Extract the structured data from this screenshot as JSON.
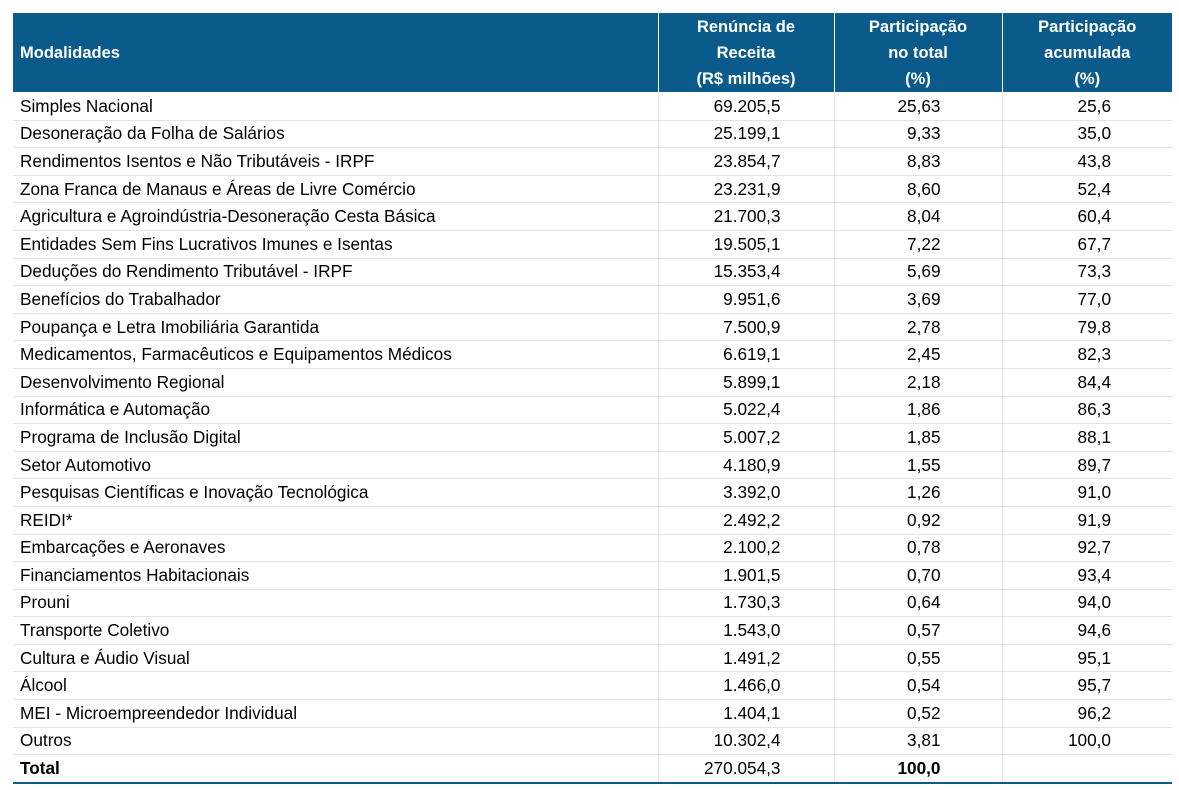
{
  "header": {
    "col1": "Modalidades",
    "col2_lines": [
      "Renúncia de",
      "Receita",
      "(R$ milhões)"
    ],
    "col3_lines": [
      "Participação",
      "no total",
      "(%)"
    ],
    "col4_lines": [
      "Participação",
      "acumulada",
      "(%)"
    ]
  },
  "rows": [
    {
      "name": "Simples Nacional",
      "renuncia": "69.205,5",
      "part": "25,63",
      "acum": "25,6"
    },
    {
      "name": "Desoneração da Folha de Salários",
      "renuncia": "25.199,1",
      "part": "9,33",
      "acum": "35,0"
    },
    {
      "name": "Rendimentos Isentos e Não Tributáveis - IRPF",
      "renuncia": "23.854,7",
      "part": "8,83",
      "acum": "43,8"
    },
    {
      "name": "Zona Franca de Manaus e Áreas de Livre Comércio",
      "renuncia": "23.231,9",
      "part": "8,60",
      "acum": "52,4"
    },
    {
      "name": "Agricultura e Agroindústria-Desoneração Cesta Básica",
      "renuncia": "21.700,3",
      "part": "8,04",
      "acum": "60,4"
    },
    {
      "name": "Entidades Sem Fins Lucrativos Imunes e Isentas",
      "renuncia": "19.505,1",
      "part": "7,22",
      "acum": "67,7"
    },
    {
      "name": "Deduções do Rendimento Tributável - IRPF",
      "renuncia": "15.353,4",
      "part": "5,69",
      "acum": "73,3"
    },
    {
      "name": "Benefícios do Trabalhador",
      "renuncia": "9.951,6",
      "part": "3,69",
      "acum": "77,0"
    },
    {
      "name": "Poupança e Letra Imobiliária Garantida",
      "renuncia": "7.500,9",
      "part": "2,78",
      "acum": "79,8"
    },
    {
      "name": "Medicamentos, Farmacêuticos e Equipamentos Médicos",
      "renuncia": "6.619,1",
      "part": "2,45",
      "acum": "82,3"
    },
    {
      "name": "Desenvolvimento Regional",
      "renuncia": "5.899,1",
      "part": "2,18",
      "acum": "84,4"
    },
    {
      "name": "Informática e Automação",
      "renuncia": "5.022,4",
      "part": "1,86",
      "acum": "86,3"
    },
    {
      "name": "Programa de Inclusão Digital",
      "renuncia": "5.007,2",
      "part": "1,85",
      "acum": "88,1"
    },
    {
      "name": "Setor Automotivo",
      "renuncia": "4.180,9",
      "part": "1,55",
      "acum": "89,7"
    },
    {
      "name": "Pesquisas Científicas e Inovação Tecnológica",
      "renuncia": "3.392,0",
      "part": "1,26",
      "acum": "91,0"
    },
    {
      "name": "REIDI*",
      "renuncia": "2.492,2",
      "part": "0,92",
      "acum": "91,9"
    },
    {
      "name": "Embarcações e Aeronaves",
      "renuncia": "2.100,2",
      "part": "0,78",
      "acum": "92,7"
    },
    {
      "name": "Financiamentos Habitacionais",
      "renuncia": "1.901,5",
      "part": "0,70",
      "acum": "93,4"
    },
    {
      "name": "Prouni",
      "renuncia": "1.730,3",
      "part": "0,64",
      "acum": "94,0"
    },
    {
      "name": "Transporte Coletivo",
      "renuncia": "1.543,0",
      "part": "0,57",
      "acum": "94,6"
    },
    {
      "name": "Cultura e Áudio Visual",
      "renuncia": "1.491,2",
      "part": "0,55",
      "acum": "95,1"
    },
    {
      "name": "Álcool",
      "renuncia": "1.466,0",
      "part": "0,54",
      "acum": "95,7"
    },
    {
      "name": "MEI - Microempreendedor Individual",
      "renuncia": "1.404,1",
      "part": "0,52",
      "acum": "96,2"
    },
    {
      "name": "Outros",
      "renuncia": "10.302,4",
      "part": "3,81",
      "acum": "100,0"
    }
  ],
  "total": {
    "label": "Total",
    "renuncia": "270.054,3",
    "part": "100,0"
  },
  "colors": {
    "header_bg": "#0b5a8c",
    "header_text": "#ffffff",
    "grid": "#e3e3e3"
  }
}
